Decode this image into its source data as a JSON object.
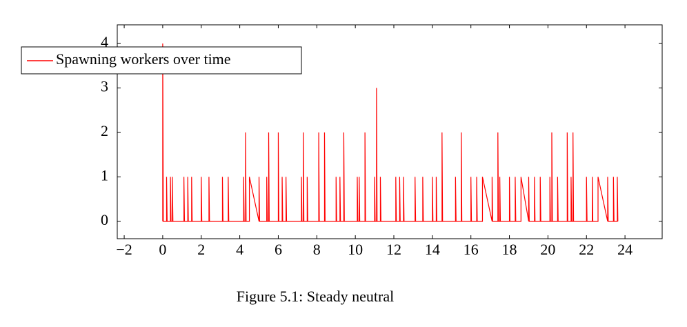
{
  "chart_data": {
    "type": "line",
    "caption": "Figure 5.1: Steady neutral",
    "x": [
      0,
      0,
      0.03,
      0.2,
      0.2,
      0.23,
      0.4,
      0.4,
      0.43,
      0.5,
      0.5,
      0.53,
      1.1,
      1.1,
      1.13,
      1.3,
      1.3,
      1.33,
      1.5,
      1.5,
      1.53,
      2,
      2,
      2.03,
      2.4,
      2.4,
      2.43,
      3.1,
      3.1,
      3.13,
      3.4,
      3.4,
      3.43,
      4.2,
      4.2,
      4.23,
      4.3,
      4.3,
      4.33,
      4.5,
      4.5,
      5,
      5,
      5.03,
      5.4,
      5.4,
      5.43,
      5.5,
      5.5,
      5.53,
      6,
      6,
      6.03,
      6.2,
      6.2,
      6.23,
      6.4,
      6.4,
      6.43,
      7.2,
      7.2,
      7.23,
      7.3,
      7.3,
      7.33,
      7.5,
      7.5,
      7.53,
      8.1,
      8.1,
      8.13,
      8.4,
      8.4,
      8.43,
      9,
      9,
      9.03,
      9.2,
      9.2,
      9.23,
      9.4,
      9.4,
      9.43,
      10.1,
      10.1,
      10.13,
      10.2,
      10.2,
      10.23,
      10.5,
      10.5,
      10.53,
      11,
      11,
      11.03,
      11.1,
      11.1,
      11.13,
      11.3,
      11.3,
      11.33,
      12.1,
      12.1,
      12.13,
      12.3,
      12.3,
      12.33,
      12.5,
      12.5,
      12.53,
      13.1,
      13.1,
      13.13,
      13.5,
      13.5,
      13.53,
      14,
      14,
      14.03,
      14.2,
      14.2,
      14.23,
      14.5,
      14.5,
      14.53,
      15.2,
      15.2,
      15.23,
      15.5,
      15.5,
      15.53,
      16,
      16,
      16.03,
      16.3,
      16.3,
      16.33,
      16.6,
      16.6,
      17.1,
      17.1,
      17.13,
      17.4,
      17.4,
      17.43,
      17.5,
      17.5,
      17.53,
      18,
      18,
      18.03,
      18.3,
      18.3,
      18.33,
      18.6,
      18.6,
      19,
      19,
      19.03,
      19.3,
      19.3,
      19.33,
      19.6,
      19.6,
      19.63,
      20.1,
      20.1,
      20.13,
      20.2,
      20.2,
      20.23,
      20.5,
      20.5,
      20.53,
      21,
      21,
      21.03,
      21.2,
      21.2,
      21.23,
      21.3,
      21.3,
      21.33,
      22,
      22,
      22.03,
      22.3,
      22.3,
      22.33,
      22.6,
      22.6,
      23.1,
      23.1,
      23.13,
      23.4,
      23.4,
      23.43,
      23.6,
      23.6,
      23.63
    ],
    "series": [
      {
        "name": "Spawning workers over time",
        "color": "#ff0000",
        "values": [
          0,
          4,
          0,
          0,
          1,
          0,
          0,
          1,
          0,
          0,
          1,
          0,
          0,
          1,
          0,
          0,
          1,
          0,
          0,
          1,
          0,
          0,
          1,
          0,
          0,
          1,
          0,
          0,
          1,
          0,
          0,
          1,
          0,
          0,
          1,
          0,
          0,
          2,
          0,
          0,
          1,
          0,
          1,
          0,
          0,
          1,
          0,
          0,
          2,
          0,
          0,
          2,
          0,
          0,
          1,
          0,
          0,
          1,
          0,
          0,
          1,
          0,
          0,
          2,
          0,
          0,
          1,
          0,
          0,
          2,
          0,
          0,
          2,
          0,
          0,
          1,
          0,
          0,
          1,
          0,
          0,
          2,
          0,
          0,
          1,
          0,
          0,
          1,
          0,
          0,
          2,
          0,
          0,
          1,
          0,
          0,
          3,
          0,
          0,
          1,
          0,
          0,
          1,
          0,
          0,
          1,
          0,
          0,
          1,
          0,
          0,
          1,
          0,
          0,
          1,
          0,
          0,
          1,
          0,
          0,
          1,
          0,
          0,
          2,
          0,
          0,
          1,
          0,
          0,
          2,
          0,
          0,
          1,
          0,
          0,
          1,
          0,
          0,
          1,
          0,
          1,
          0,
          0,
          2,
          0,
          0,
          1,
          0,
          0,
          1,
          0,
          0,
          1,
          0,
          0,
          1,
          0,
          1,
          0,
          0,
          1,
          0,
          0,
          1,
          0,
          0,
          1,
          0,
          0,
          2,
          0,
          0,
          1,
          0,
          0,
          2,
          0,
          0,
          1,
          0,
          0,
          2,
          0,
          0,
          1,
          0,
          0,
          1,
          0,
          0,
          1,
          0,
          1,
          0,
          0,
          1,
          0,
          0,
          1,
          0
        ]
      }
    ],
    "xlim": [
      -2.36,
      25.93
    ],
    "ylim": [
      -0.39,
      4.42
    ],
    "xticks": [
      {
        "value": -2,
        "label": "−2"
      },
      0,
      2,
      4,
      6,
      8,
      10,
      12,
      14,
      16,
      18,
      20,
      22,
      24
    ],
    "yticks": [
      0,
      1,
      2,
      3,
      4
    ],
    "legend_position": "upper left"
  }
}
